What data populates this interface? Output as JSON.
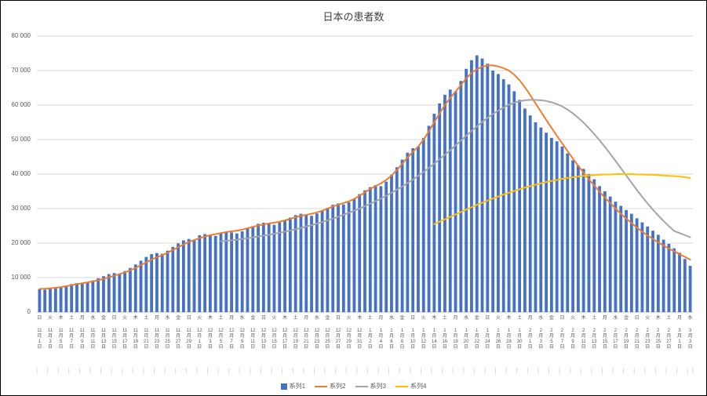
{
  "chart_data": {
    "type": "bar",
    "title": "日本の患者数",
    "xlabel": "",
    "ylabel": "",
    "ylim": [
      0,
      80000
    ],
    "ytick_step": 10000,
    "ytick_labels": [
      "0",
      "10 000",
      "20 000",
      "30 000",
      "40 000",
      "50 000",
      "60 000",
      "70 000",
      "80 000"
    ],
    "grid": true,
    "legend_position": "bottom",
    "x_description": "daily dates from 11月1日 to 3月3日, tick labels every 2 days with weekday",
    "x_ticks": [
      {
        "w": "日",
        "date": "11月1日"
      },
      {
        "w": "火",
        "date": "11月3日"
      },
      {
        "w": "木",
        "date": "11月5日"
      },
      {
        "w": "土",
        "date": "11月7日"
      },
      {
        "w": "月",
        "date": "11月9日"
      },
      {
        "w": "水",
        "date": "11月11日"
      },
      {
        "w": "金",
        "date": "11月13日"
      },
      {
        "w": "日",
        "date": "11月15日"
      },
      {
        "w": "火",
        "date": "11月17日"
      },
      {
        "w": "木",
        "date": "11月19日"
      },
      {
        "w": "土",
        "date": "11月21日"
      },
      {
        "w": "月",
        "date": "11月23日"
      },
      {
        "w": "水",
        "date": "11月25日"
      },
      {
        "w": "金",
        "date": "11月27日"
      },
      {
        "w": "日",
        "date": "11月29日"
      },
      {
        "w": "火",
        "date": "12月1日"
      },
      {
        "w": "木",
        "date": "12月3日"
      },
      {
        "w": "土",
        "date": "12月5日"
      },
      {
        "w": "月",
        "date": "12月7日"
      },
      {
        "w": "水",
        "date": "12月9日"
      },
      {
        "w": "金",
        "date": "12月11日"
      },
      {
        "w": "日",
        "date": "12月13日"
      },
      {
        "w": "火",
        "date": "12月15日"
      },
      {
        "w": "木",
        "date": "12月17日"
      },
      {
        "w": "土",
        "date": "12月19日"
      },
      {
        "w": "月",
        "date": "12月21日"
      },
      {
        "w": "水",
        "date": "12月23日"
      },
      {
        "w": "金",
        "date": "12月25日"
      },
      {
        "w": "日",
        "date": "12月27日"
      },
      {
        "w": "火",
        "date": "12月29日"
      },
      {
        "w": "木",
        "date": "12月31日"
      },
      {
        "w": "土",
        "date": "1月2日"
      },
      {
        "w": "月",
        "date": "1月4日"
      },
      {
        "w": "水",
        "date": "1月6日"
      },
      {
        "w": "金",
        "date": "1月8日"
      },
      {
        "w": "日",
        "date": "1月10日"
      },
      {
        "w": "火",
        "date": "1月12日"
      },
      {
        "w": "木",
        "date": "1月14日"
      },
      {
        "w": "土",
        "date": "1月16日"
      },
      {
        "w": "月",
        "date": "1月18日"
      },
      {
        "w": "水",
        "date": "1月20日"
      },
      {
        "w": "金",
        "date": "1月22日"
      },
      {
        "w": "日",
        "date": "1月24日"
      },
      {
        "w": "火",
        "date": "1月26日"
      },
      {
        "w": "木",
        "date": "1月28日"
      },
      {
        "w": "土",
        "date": "1月30日"
      },
      {
        "w": "月",
        "date": "2月1日"
      },
      {
        "w": "水",
        "date": "2月3日"
      },
      {
        "w": "金",
        "date": "2月5日"
      },
      {
        "w": "日",
        "date": "2月7日"
      },
      {
        "w": "火",
        "date": "2月9日"
      },
      {
        "w": "木",
        "date": "2月11日"
      },
      {
        "w": "土",
        "date": "2月13日"
      },
      {
        "w": "月",
        "date": "2月15日"
      },
      {
        "w": "水",
        "date": "2月17日"
      },
      {
        "w": "金",
        "date": "2月19日"
      },
      {
        "w": "日",
        "date": "2月21日"
      },
      {
        "w": "火",
        "date": "2月23日"
      },
      {
        "w": "木",
        "date": "2月25日"
      },
      {
        "w": "土",
        "date": "2月27日"
      },
      {
        "w": "月",
        "date": "3月1日"
      },
      {
        "w": "水",
        "date": "3月3日"
      }
    ],
    "series": [
      {
        "name": "系列1",
        "kind": "bar",
        "color": "#4472C4",
        "values": [
          6600,
          6500,
          6800,
          7000,
          7300,
          7700,
          8100,
          8400,
          8300,
          8600,
          9200,
          9800,
          10400,
          11000,
          11300,
          11200,
          11900,
          12800,
          13800,
          14900,
          16000,
          16800,
          17100,
          16900,
          17800,
          18900,
          19900,
          20800,
          21200,
          21000,
          22300,
          22600,
          22400,
          22100,
          22800,
          23300,
          23100,
          22800,
          23400,
          24200,
          24900,
          25600,
          25900,
          25600,
          25300,
          26000,
          26700,
          27400,
          28100,
          28500,
          28200,
          27900,
          28600,
          29400,
          30200,
          31100,
          31500,
          31200,
          31800,
          32800,
          34200,
          35300,
          36200,
          36800,
          36500,
          37800,
          39800,
          42000,
          44200,
          46200,
          47500,
          48000,
          50500,
          54000,
          57500,
          60500,
          63000,
          64500,
          64000,
          67000,
          70500,
          73000,
          74400,
          73500,
          72000,
          70000,
          69000,
          67500,
          66000,
          64000,
          61500,
          59000,
          57000,
          55000,
          53500,
          52000,
          50500,
          49500,
          48000,
          46000,
          44000,
          42500,
          41500,
          40000,
          38500,
          36500,
          35000,
          33500,
          32000,
          30800,
          29600,
          28500,
          27200,
          26000,
          24800,
          23600,
          22400,
          21000,
          19800,
          18500,
          17200,
          15400,
          13400
        ]
      },
      {
        "name": "系列2",
        "kind": "line",
        "color": "#ED7D31",
        "values": [
          6700,
          6800,
          6900,
          7050,
          7250,
          7500,
          7800,
          8100,
          8350,
          8600,
          8900,
          9250,
          9650,
          10100,
          10550,
          11000,
          11500,
          12100,
          12800,
          13600,
          14400,
          15200,
          15900,
          16500,
          17200,
          18000,
          18800,
          19600,
          20300,
          20900,
          21400,
          21900,
          22300,
          22600,
          22900,
          23200,
          23400,
          23600,
          23900,
          24300,
          24700,
          25100,
          25400,
          25700,
          25900,
          26200,
          26600,
          27000,
          27500,
          27900,
          28200,
          28500,
          28900,
          29400,
          30000,
          30600,
          31100,
          31600,
          32100,
          32800,
          33700,
          34700,
          35700,
          36500,
          37300,
          38300,
          39600,
          41200,
          43000,
          44800,
          46400,
          48000,
          50000,
          52400,
          55000,
          57600,
          60000,
          62100,
          63900,
          65800,
          67700,
          69300,
          70400,
          71100,
          71500,
          71500,
          71200,
          70700,
          70000,
          68800,
          67200,
          65200,
          62900,
          60500,
          58100,
          55700,
          53400,
          51100,
          48900,
          46700,
          44500,
          42400,
          40400,
          38500,
          36700,
          34900,
          33200,
          31600,
          30000,
          28500,
          27100,
          25800,
          24500,
          23300,
          22200,
          21200,
          20200,
          19300,
          18400,
          17600,
          16800,
          16000,
          15200
        ]
      },
      {
        "name": "系列3",
        "kind": "line",
        "color": "#A5A5A5",
        "values": [
          null,
          null,
          null,
          null,
          null,
          null,
          null,
          null,
          null,
          null,
          null,
          null,
          null,
          null,
          null,
          null,
          null,
          null,
          null,
          null,
          null,
          null,
          null,
          null,
          null,
          null,
          null,
          null,
          null,
          null,
          null,
          null,
          null,
          null,
          20500,
          20650,
          20800,
          21000,
          21200,
          21400,
          21650,
          21900,
          22150,
          22400,
          22700,
          23000,
          23300,
          23650,
          24000,
          24400,
          24800,
          25200,
          25650,
          26100,
          26600,
          27100,
          27650,
          28200,
          28800,
          29400,
          30000,
          30700,
          31400,
          32100,
          32900,
          33700,
          34600,
          35500,
          36400,
          37400,
          38400,
          39500,
          40600,
          41800,
          43000,
          44300,
          45600,
          46900,
          48300,
          49700,
          51100,
          52500,
          53800,
          55100,
          56300,
          57400,
          58400,
          59300,
          60100,
          60700,
          61100,
          61400,
          61500,
          61500,
          61400,
          61200,
          60800,
          60300,
          59600,
          58700,
          57600,
          56300,
          54900,
          53300,
          51600,
          49800,
          47900,
          45900,
          43800,
          41700,
          39600,
          37500,
          35400,
          33400,
          31500,
          29700,
          28000,
          26400,
          24900,
          23500,
          22900,
          22300,
          21700
        ]
      },
      {
        "name": "系列4",
        "kind": "line",
        "color": "#FFC000",
        "values": [
          null,
          null,
          null,
          null,
          null,
          null,
          null,
          null,
          null,
          null,
          null,
          null,
          null,
          null,
          null,
          null,
          null,
          null,
          null,
          null,
          null,
          null,
          null,
          null,
          null,
          null,
          null,
          null,
          null,
          null,
          null,
          null,
          null,
          null,
          null,
          null,
          null,
          null,
          null,
          null,
          null,
          null,
          null,
          null,
          null,
          null,
          null,
          null,
          null,
          null,
          null,
          null,
          null,
          null,
          null,
          null,
          null,
          null,
          null,
          null,
          null,
          null,
          null,
          null,
          null,
          null,
          null,
          null,
          null,
          null,
          null,
          null,
          null,
          null,
          25500,
          26200,
          26900,
          27600,
          28300,
          29000,
          29700,
          30400,
          31100,
          31700,
          32300,
          32900,
          33500,
          34100,
          34600,
          35100,
          35600,
          36100,
          36500,
          36900,
          37300,
          37700,
          38000,
          38300,
          38600,
          38900,
          39100,
          39300,
          39500,
          39600,
          39700,
          39800,
          39900,
          39900,
          40000,
          40000,
          40000,
          40000,
          39900,
          39900,
          39800,
          39800,
          39700,
          39600,
          39500,
          39400,
          39300,
          39100,
          38900
        ]
      }
    ]
  },
  "colors": {
    "gridline": "#D9D9D9",
    "axis_line": "#BFBFBF",
    "text": "#595959",
    "title_text": "#404040"
  }
}
